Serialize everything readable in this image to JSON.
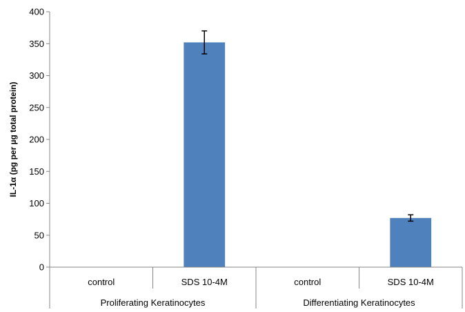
{
  "chart_data": {
    "type": "bar",
    "title": "",
    "xlabel": "",
    "ylabel": "IL-1α (pg per µg total protein)",
    "ylim": [
      0,
      400
    ],
    "yticks": [
      0,
      50,
      100,
      150,
      200,
      250,
      300,
      350,
      400
    ],
    "grid": false,
    "legend": "none",
    "bar_color": "#4f81bd",
    "groups": [
      {
        "label": "Proliferating Keratinocytes",
        "categories": [
          "control",
          "SDS 10-4M"
        ]
      },
      {
        "label": "Differentiating Keratinocytes",
        "categories": [
          "control",
          "SDS 10-4M"
        ]
      }
    ],
    "categories": [
      "control",
      "SDS 10-4M",
      "control",
      "SDS 10-4M"
    ],
    "values": [
      0,
      352,
      0,
      77
    ],
    "errors": [
      0,
      18,
      0,
      5
    ]
  }
}
